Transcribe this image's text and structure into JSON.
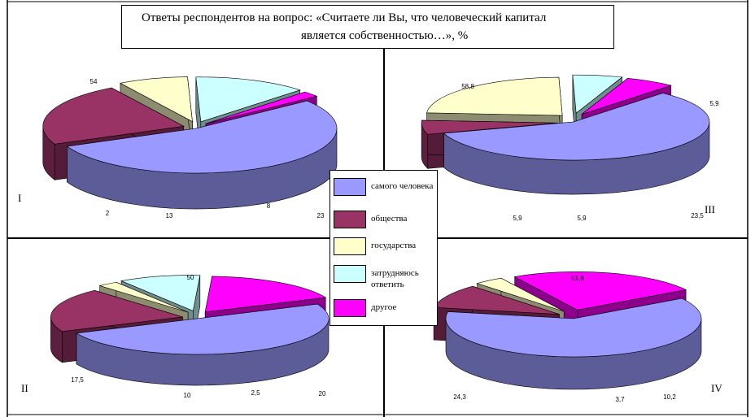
{
  "title_line1": "Ответы респондентов на вопрос: «Считаете ли Вы, что человеческий капитал",
  "title_line2": "является собственностью…», %",
  "legend": [
    {
      "label": "самого человека",
      "color": "#9999ff"
    },
    {
      "label": "общества",
      "color": "#993366"
    },
    {
      "label": "государства",
      "color": "#ffffcc"
    },
    {
      "label": "затрудняюсь ответить",
      "color": "#ccffff"
    },
    {
      "label": "другое",
      "color": "#ff00ff"
    }
  ],
  "chart_data": [
    {
      "type": "pie",
      "id": "I",
      "categories": [
        "самого человека",
        "общества",
        "государства",
        "затрудняюсь ответить",
        "другое"
      ],
      "values": [
        54,
        23,
        8,
        13,
        2
      ],
      "labels": [
        "54",
        "23",
        "8",
        "13",
        "2"
      ]
    },
    {
      "type": "pie",
      "id": "II",
      "categories": [
        "самого человека",
        "общества",
        "государства",
        "затрудняюсь ответить",
        "другое"
      ],
      "values": [
        50,
        20,
        2.5,
        10,
        17.5
      ],
      "labels": [
        "50",
        "20",
        "2,5",
        "10",
        "17,5"
      ]
    },
    {
      "type": "pie",
      "id": "III",
      "categories": [
        "самого человека",
        "общества",
        "государства",
        "затрудняюсь ответить",
        "другое"
      ],
      "values": [
        58.8,
        5.9,
        23.5,
        5.9,
        5.9
      ],
      "labels": [
        "58,8",
        "5,9",
        "23,5",
        "5,9",
        "5,9"
      ]
    },
    {
      "type": "pie",
      "id": "IV",
      "categories": [
        "самого человека",
        "общества",
        "государства",
        "затрудняюсь ответить",
        "другое"
      ],
      "values": [
        61.8,
        10.2,
        3.7,
        0,
        24.3
      ],
      "labels": [
        "61,8",
        "10,2",
        "3,7",
        "",
        "24,3"
      ]
    }
  ]
}
